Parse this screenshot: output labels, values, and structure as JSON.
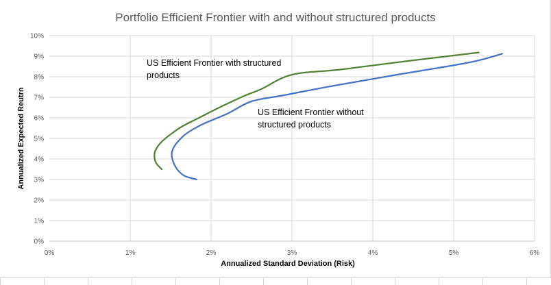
{
  "chart_data": {
    "type": "line",
    "title": "Portfolio Efficient Frontier with and without structured products",
    "xlabel": "Annualized Standard Deviation (Risk)",
    "ylabel": "Annualized Expected Reutrn",
    "xlim": [
      0,
      0.06
    ],
    "ylim": [
      0,
      0.1
    ],
    "x_ticks": [
      "0%",
      "1%",
      "2%",
      "3%",
      "4%",
      "5%",
      "6%"
    ],
    "y_ticks": [
      "0%",
      "1%",
      "2%",
      "3%",
      "4%",
      "5%",
      "6%",
      "7%",
      "8%",
      "9%",
      "10%"
    ],
    "grid": "vertical and horizontal",
    "annotations": [
      {
        "lines": [
          "US Efficient Frontier with structured",
          "products"
        ]
      },
      {
        "lines": [
          "US Efficient Frontier without",
          "structured products"
        ]
      }
    ],
    "series": [
      {
        "color": "#548235",
        "points": [
          [
            0.0139,
            0.035
          ],
          [
            0.0132,
            0.038
          ],
          [
            0.013,
            0.041
          ],
          [
            0.0131,
            0.044
          ],
          [
            0.0138,
            0.048
          ],
          [
            0.015,
            0.052
          ],
          [
            0.0165,
            0.056
          ],
          [
            0.0185,
            0.06
          ],
          [
            0.021,
            0.065
          ],
          [
            0.024,
            0.0705
          ],
          [
            0.0262,
            0.074
          ],
          [
            0.03,
            0.081
          ],
          [
            0.036,
            0.0835
          ],
          [
            0.044,
            0.0875
          ],
          [
            0.0531,
            0.0918
          ]
        ]
      },
      {
        "color": "#4472c4",
        "points": [
          [
            0.0182,
            0.03
          ],
          [
            0.0167,
            0.0318
          ],
          [
            0.0158,
            0.035
          ],
          [
            0.0152,
            0.04
          ],
          [
            0.0152,
            0.044
          ],
          [
            0.0158,
            0.048
          ],
          [
            0.017,
            0.0525
          ],
          [
            0.019,
            0.057
          ],
          [
            0.022,
            0.062
          ],
          [
            0.025,
            0.068
          ],
          [
            0.029,
            0.071
          ],
          [
            0.035,
            0.0755
          ],
          [
            0.043,
            0.081
          ],
          [
            0.052,
            0.087
          ],
          [
            0.056,
            0.0912
          ]
        ]
      }
    ]
  }
}
